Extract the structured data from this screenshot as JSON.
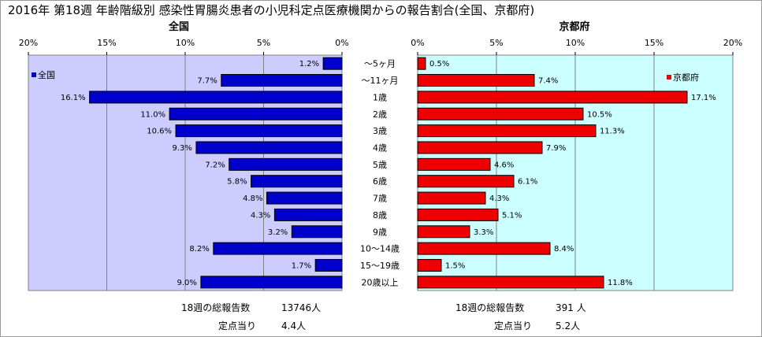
{
  "title": "2016年 第18週 年齢階級別 感染性胃腸炎患者の小児科定点医療機関からの報告割合(全国、京都府)",
  "chart_data": {
    "type": "bar",
    "orientation": "horizontal",
    "categories": [
      "～5ヶ月",
      "～11ヶ月",
      "1歳",
      "2歳",
      "3歳",
      "4歳",
      "5歳",
      "6歳",
      "7歳",
      "8歳",
      "9歳",
      "10～14歳",
      "15～19歳",
      "20歳以上"
    ],
    "xlim": [
      0,
      20
    ],
    "ticks": [
      0,
      5,
      10,
      15,
      20
    ],
    "tick_labels_national": [
      "20%",
      "15%",
      "10%",
      "5%",
      "0%"
    ],
    "tick_labels_kyoto": [
      "0%",
      "5%",
      "10%",
      "15%",
      "20%"
    ],
    "grid": true,
    "series": [
      {
        "name": "全国",
        "panel_title": "全国",
        "legend": "全国",
        "color": "#0000cc",
        "values": [
          1.2,
          7.7,
          16.1,
          11.0,
          10.6,
          9.3,
          7.2,
          5.8,
          4.8,
          4.3,
          3.2,
          8.2,
          1.7,
          9.0
        ],
        "labels": [
          "1.2%",
          "7.7%",
          "16.1%",
          "11.0%",
          "10.6%",
          "9.3%",
          "7.2%",
          "5.8%",
          "4.8%",
          "4.3%",
          "3.2%",
          "8.2%",
          "1.7%",
          "9.0%"
        ]
      },
      {
        "name": "京都府",
        "panel_title": "京都府",
        "legend": "京都府",
        "color": "#ee0000",
        "values": [
          0.5,
          7.4,
          17.1,
          10.5,
          11.3,
          7.9,
          4.6,
          6.1,
          4.3,
          5.1,
          3.3,
          8.4,
          1.5,
          11.8
        ],
        "labels": [
          "0.5%",
          "7.4%",
          "17.1%",
          "10.5%",
          "11.3%",
          "7.9%",
          "4.6%",
          "6.1%",
          "4.3%",
          "5.1%",
          "3.3%",
          "8.4%",
          "1.5%",
          "11.8%"
        ]
      }
    ],
    "plot_colors": {
      "national_bg": "#ccccff",
      "kyoto_bg": "#ccffff"
    }
  },
  "footer": {
    "national": {
      "total_label": "18週の総報告数",
      "total_value": "13746人",
      "per_label": "定点当り",
      "per_value": "4.4人"
    },
    "kyoto": {
      "total_label": "18週の総報告数",
      "total_value": "391 人",
      "per_label": "定点当り",
      "per_value": "5.2人"
    }
  }
}
